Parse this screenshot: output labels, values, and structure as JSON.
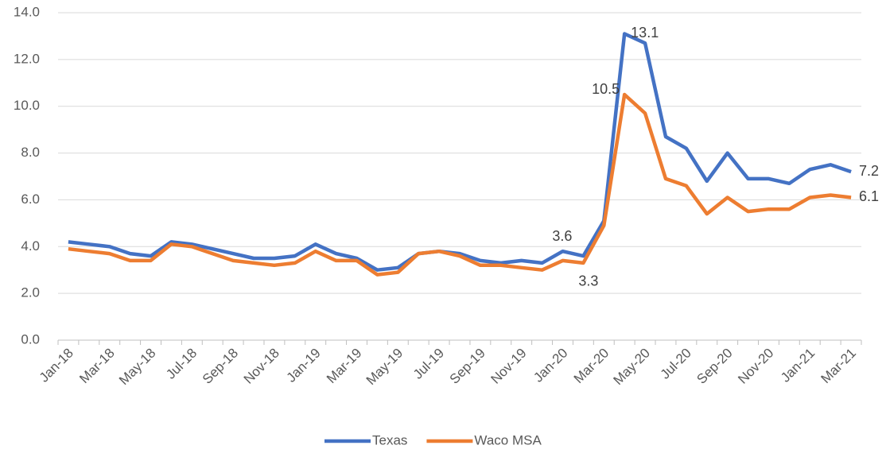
{
  "chart_data": {
    "type": "line",
    "categories": [
      "Jan-18",
      null,
      "Mar-18",
      null,
      "May-18",
      null,
      "Jul-18",
      null,
      "Sep-18",
      null,
      "Nov-18",
      null,
      "Jan-19",
      null,
      "Mar-19",
      null,
      "May-19",
      null,
      "Jul-19",
      null,
      "Sep-19",
      null,
      "Nov-19",
      null,
      "Jan-20",
      null,
      "Mar-20",
      null,
      "May-20",
      null,
      "Jul-20",
      null,
      "Sep-20",
      null,
      "Nov-20",
      null,
      "Jan-21",
      null,
      "Mar-21"
    ],
    "series": [
      {
        "name": "Texas",
        "color": "#4472c4",
        "values": [
          4.2,
          4.1,
          4.0,
          3.7,
          3.6,
          4.2,
          4.1,
          3.9,
          3.7,
          3.5,
          3.5,
          3.6,
          4.1,
          3.7,
          3.5,
          3.0,
          3.1,
          3.7,
          3.8,
          3.7,
          3.4,
          3.3,
          3.4,
          3.3,
          3.8,
          3.6,
          5.1,
          13.1,
          12.7,
          8.7,
          8.2,
          6.8,
          8.0,
          6.9,
          6.9,
          6.7,
          7.3,
          7.5,
          7.2
        ],
        "value_labels": [
          null,
          null,
          null,
          null,
          null,
          null,
          null,
          null,
          null,
          null,
          null,
          null,
          null,
          null,
          null,
          null,
          null,
          null,
          null,
          null,
          null,
          null,
          null,
          null,
          null,
          "3.6",
          null,
          "13.1",
          null,
          null,
          null,
          null,
          null,
          null,
          null,
          null,
          null,
          null,
          "7.2"
        ]
      },
      {
        "name": "Waco MSA",
        "color": "#ed7d31",
        "values": [
          3.9,
          3.8,
          3.7,
          3.4,
          3.4,
          4.1,
          4.0,
          3.7,
          3.4,
          3.3,
          3.2,
          3.3,
          3.8,
          3.4,
          3.4,
          2.8,
          2.9,
          3.7,
          3.8,
          3.6,
          3.2,
          3.2,
          3.1,
          3.0,
          3.4,
          3.3,
          4.9,
          10.5,
          9.7,
          6.9,
          6.6,
          5.4,
          6.1,
          5.5,
          5.6,
          5.6,
          6.1,
          6.2,
          6.1
        ],
        "value_labels": [
          null,
          null,
          null,
          null,
          null,
          null,
          null,
          null,
          null,
          null,
          null,
          null,
          null,
          null,
          null,
          null,
          null,
          null,
          null,
          null,
          null,
          null,
          null,
          null,
          null,
          "3.3",
          null,
          "10.5",
          null,
          null,
          null,
          null,
          null,
          null,
          null,
          null,
          null,
          null,
          "6.1"
        ]
      }
    ],
    "ylim": [
      0,
      14
    ],
    "yticks": [
      {
        "value": 0,
        "label": "0.0"
      },
      {
        "value": 2,
        "label": "2.0"
      },
      {
        "value": 4,
        "label": "4.0"
      },
      {
        "value": 6,
        "label": "6.0"
      },
      {
        "value": 8,
        "label": "8.0"
      },
      {
        "value": 10,
        "label": "10.0"
      },
      {
        "value": 12,
        "label": "12.0"
      },
      {
        "value": 14,
        "label": "14.0"
      }
    ],
    "grid": true,
    "legend": "bottom"
  }
}
